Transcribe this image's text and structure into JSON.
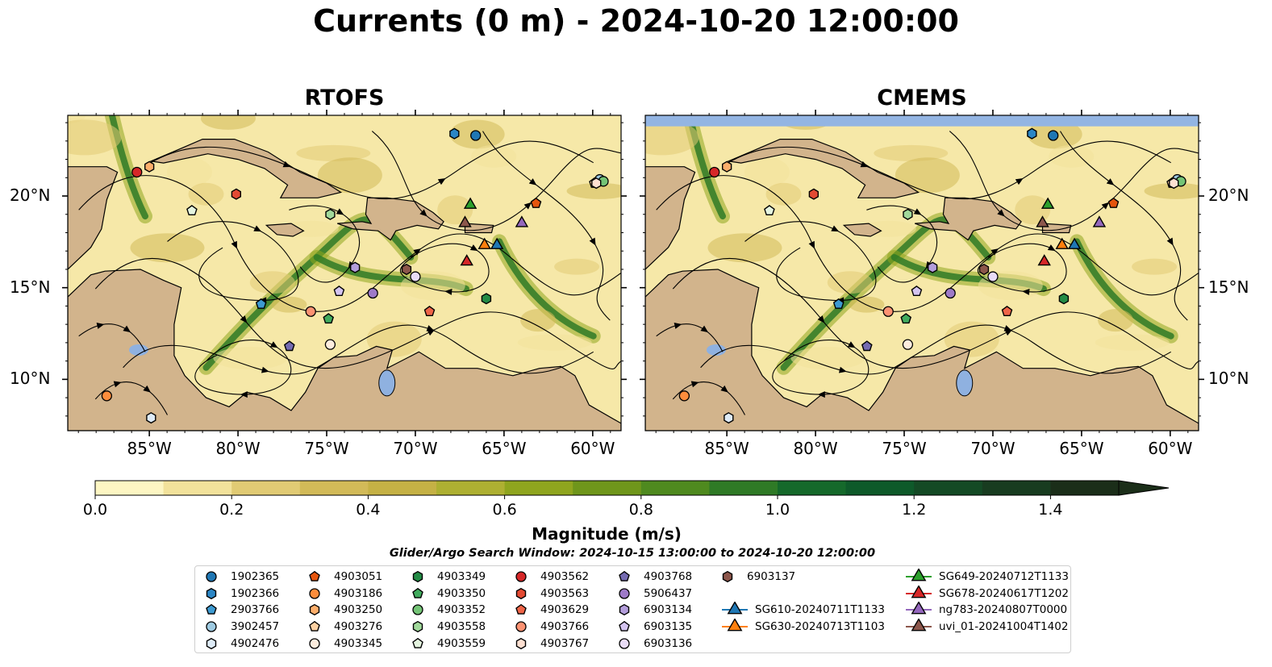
{
  "title": "Currents (0 m) - 2024-10-20 12:00:00",
  "panels": [
    {
      "title": "RTOFS"
    },
    {
      "title": "CMEMS"
    }
  ],
  "axes": {
    "x_ticks": [
      "85°W",
      "80°W",
      "75°W",
      "70°W",
      "65°W",
      "60°W"
    ],
    "x_tick_values": [
      -85,
      -80,
      -75,
      -70,
      -65,
      -60
    ],
    "y_ticks": [
      "20°N",
      "15°N",
      "10°N"
    ],
    "y_tick_values": [
      20,
      15,
      10
    ],
    "lon_range": [
      -89.6,
      -58.4
    ],
    "lat_range": [
      7.2,
      24.4
    ]
  },
  "colorbar": {
    "label": "Magnitude (m/s)",
    "ticks": [
      "0.0",
      "0.2",
      "0.4",
      "0.6",
      "0.8",
      "1.0",
      "1.2",
      "1.4"
    ],
    "range": [
      0.0,
      1.5
    ],
    "colors": [
      "#fdf6c3",
      "#f2e29b",
      "#e1cb74",
      "#d2ba58",
      "#c5b145",
      "#aeb032",
      "#8fa51e",
      "#6f961b",
      "#4f8a1f",
      "#2f7a26",
      "#15692b",
      "#0e5a2a",
      "#144a25",
      "#183c20",
      "#1b2e19"
    ]
  },
  "search_window": "Glider/Argo Search Window: 2024-10-15 13:00:00 to 2024-10-20 12:00:00",
  "colors": {
    "land": "#d2b48c",
    "ocean_weak": "#f6e8a8",
    "lake": "#8fb1e0",
    "no_data": "#93b5e3",
    "streamline": "#000000",
    "marker_edge": "#000000"
  },
  "legend": [
    {
      "label": "1902365",
      "shape": "circle",
      "color": "#1f77b4"
    },
    {
      "label": "1902366",
      "shape": "hexagon",
      "color": "#2b86c5"
    },
    {
      "label": "2903766",
      "shape": "pentagon",
      "color": "#3d9ad1"
    },
    {
      "label": "3902457",
      "shape": "circle",
      "color": "#9ecae1"
    },
    {
      "label": "4902476",
      "shape": "hexagon",
      "color": "#deebf7"
    },
    {
      "label": "4903051",
      "shape": "pentagon",
      "color": "#e6550d"
    },
    {
      "label": "4903186",
      "shape": "circle",
      "color": "#fd8d3c"
    },
    {
      "label": "4903250",
      "shape": "hexagon",
      "color": "#fdae6b"
    },
    {
      "label": "4903276",
      "shape": "pentagon",
      "color": "#fdd0a2"
    },
    {
      "label": "4903345",
      "shape": "circle",
      "color": "#feedde"
    },
    {
      "label": "4903349",
      "shape": "hexagon",
      "color": "#238b45"
    },
    {
      "label": "4903350",
      "shape": "pentagon",
      "color": "#41ab5d"
    },
    {
      "label": "4903352",
      "shape": "circle",
      "color": "#74c476"
    },
    {
      "label": "4903558",
      "shape": "hexagon",
      "color": "#a1d99b"
    },
    {
      "label": "4903559",
      "shape": "pentagon",
      "color": "#e5f5e0"
    },
    {
      "label": "4903562",
      "shape": "circle",
      "color": "#d62728"
    },
    {
      "label": "4903563",
      "shape": "hexagon",
      "color": "#e34a33"
    },
    {
      "label": "4903629",
      "shape": "pentagon",
      "color": "#ef6548"
    },
    {
      "label": "4903766",
      "shape": "circle",
      "color": "#fc9272"
    },
    {
      "label": "4903767",
      "shape": "hexagon",
      "color": "#fee0d2"
    },
    {
      "label": "4903768",
      "shape": "pentagon",
      "color": "#756bb1"
    },
    {
      "label": "5906437",
      "shape": "circle",
      "color": "#9e7ac8"
    },
    {
      "label": "6903134",
      "shape": "hexagon",
      "color": "#b39ddb"
    },
    {
      "label": "6903135",
      "shape": "pentagon",
      "color": "#d4c4f0"
    },
    {
      "label": "6903136",
      "shape": "circle",
      "color": "#e9dcf7"
    },
    {
      "label": "6903137",
      "shape": "hexagon",
      "color": "#8c564b"
    },
    {
      "label": "SG610-20240711T1133",
      "shape": "triangle",
      "color": "#1f77b4"
    },
    {
      "label": "SG630-20240713T1103",
      "shape": "triangle",
      "color": "#ff7f0e"
    },
    {
      "label": "SG649-20240712T1133",
      "shape": "triangle",
      "color": "#2ca02c"
    },
    {
      "label": "SG678-20240617T1202",
      "shape": "triangle",
      "color": "#d62728"
    },
    {
      "label": "ng783-20240807T0000",
      "shape": "triangle",
      "color": "#9467bd"
    },
    {
      "label": "uvi_01-20241004T1402",
      "shape": "triangle",
      "color": "#8c564b"
    }
  ],
  "markers": [
    {
      "id": "1902365",
      "lon": -66.6,
      "lat": 23.3
    },
    {
      "id": "1902366",
      "lon": -67.8,
      "lat": 23.4
    },
    {
      "id": "2903766",
      "lon": -78.7,
      "lat": 14.1
    },
    {
      "id": "3902457",
      "lon": -59.6,
      "lat": 20.9
    },
    {
      "id": "4902476",
      "lon": -84.9,
      "lat": 7.9
    },
    {
      "id": "4903051",
      "lon": -63.2,
      "lat": 19.6
    },
    {
      "id": "4903186",
      "lon": -87.4,
      "lat": 9.1
    },
    {
      "id": "4903250",
      "lon": -85.0,
      "lat": 21.6
    },
    {
      "id": "4903276",
      "lon": -59.9,
      "lat": 20.7
    },
    {
      "id": "4903345",
      "lon": -74.8,
      "lat": 11.9
    },
    {
      "id": "4903349",
      "lon": -66.0,
      "lat": 14.4
    },
    {
      "id": "4903350",
      "lon": -74.9,
      "lat": 13.3
    },
    {
      "id": "4903352",
      "lon": -59.4,
      "lat": 20.8
    },
    {
      "id": "4903558",
      "lon": -74.8,
      "lat": 19.0
    },
    {
      "id": "4903559",
      "lon": -82.6,
      "lat": 19.2
    },
    {
      "id": "4903562",
      "lon": -85.7,
      "lat": 21.3
    },
    {
      "id": "4903563",
      "lon": -80.1,
      "lat": 20.1
    },
    {
      "id": "4903629",
      "lon": -69.2,
      "lat": 13.7
    },
    {
      "id": "4903766",
      "lon": -75.9,
      "lat": 13.7
    },
    {
      "id": "4903767",
      "lon": -59.8,
      "lat": 20.7
    },
    {
      "id": "4903768",
      "lon": -77.1,
      "lat": 11.8
    },
    {
      "id": "5906437",
      "lon": -72.4,
      "lat": 14.7
    },
    {
      "id": "6903134",
      "lon": -73.4,
      "lat": 16.1
    },
    {
      "id": "6903135",
      "lon": -74.3,
      "lat": 14.8
    },
    {
      "id": "6903136",
      "lon": -70.0,
      "lat": 15.6
    },
    {
      "id": "6903137",
      "lon": -70.5,
      "lat": 16.0
    },
    {
      "id": "SG610-20240711T1133",
      "lon": -65.4,
      "lat": 17.4
    },
    {
      "id": "SG630-20240713T1103",
      "lon": -66.1,
      "lat": 17.4
    },
    {
      "id": "SG649-20240712T1133",
      "lon": -66.9,
      "lat": 19.6
    },
    {
      "id": "SG678-20240617T1202",
      "lon": -67.1,
      "lat": 16.5
    },
    {
      "id": "ng783-20240807T0000",
      "lon": -64.0,
      "lat": 18.6
    },
    {
      "id": "uvi_01-20241004T1402",
      "lon": -67.2,
      "lat": 18.6
    }
  ]
}
